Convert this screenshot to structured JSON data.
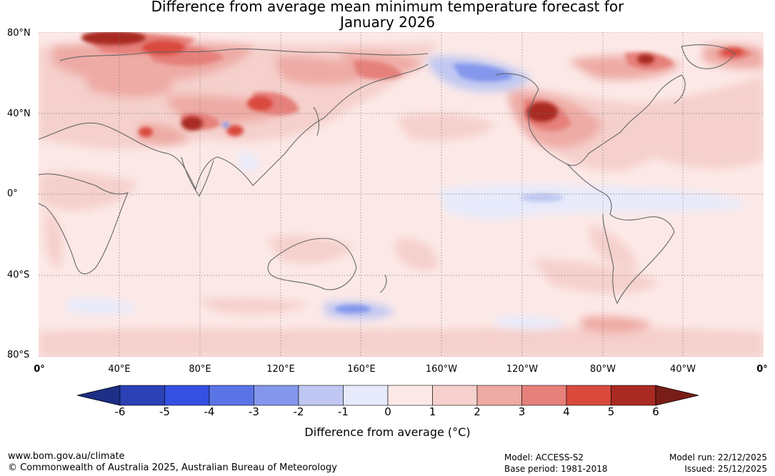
{
  "title": {
    "line1": "Difference from average mean minimum temperature forecast for",
    "line2": "January 2026"
  },
  "axes": {
    "lat_labels": [
      "80°N",
      "40°N",
      "0°",
      "40°S",
      "80°S"
    ],
    "lon_labels": [
      "0°",
      "40°E",
      "80°E",
      "120°E",
      "160°E",
      "160°W",
      "120°W",
      "80°W",
      "40°W",
      "0°"
    ]
  },
  "colorbar": {
    "ticks": [
      "-6",
      "-5",
      "-4",
      "-3",
      "-2",
      "-1",
      "0",
      "1",
      "2",
      "3",
      "4",
      "5",
      "6"
    ],
    "colors": [
      "#1c2e86",
      "#2b41b5",
      "#3350e0",
      "#5a74e6",
      "#8497ec",
      "#bfc7f2",
      "#e7eafb",
      "#fce9e7",
      "#f5d0cc",
      "#eeaaa4",
      "#e6807a",
      "#d94a3d",
      "#a92a22",
      "#7a1d18"
    ],
    "label": "Difference from average (°C)",
    "label_pre": "Difference from average (",
    "label_unit": "°C",
    "label_post": ")"
  },
  "footer": {
    "website": "www.bom.gov.au/climate",
    "copyright": "© Commonwealth of Australia 2025, Australian Bureau of Meteorology",
    "model": "Model: ACCESS-S2",
    "base_period": "Base period: 1981-2018",
    "model_run": "Model run: 22/12/2025",
    "issued": "Issued: 25/12/2025"
  }
}
